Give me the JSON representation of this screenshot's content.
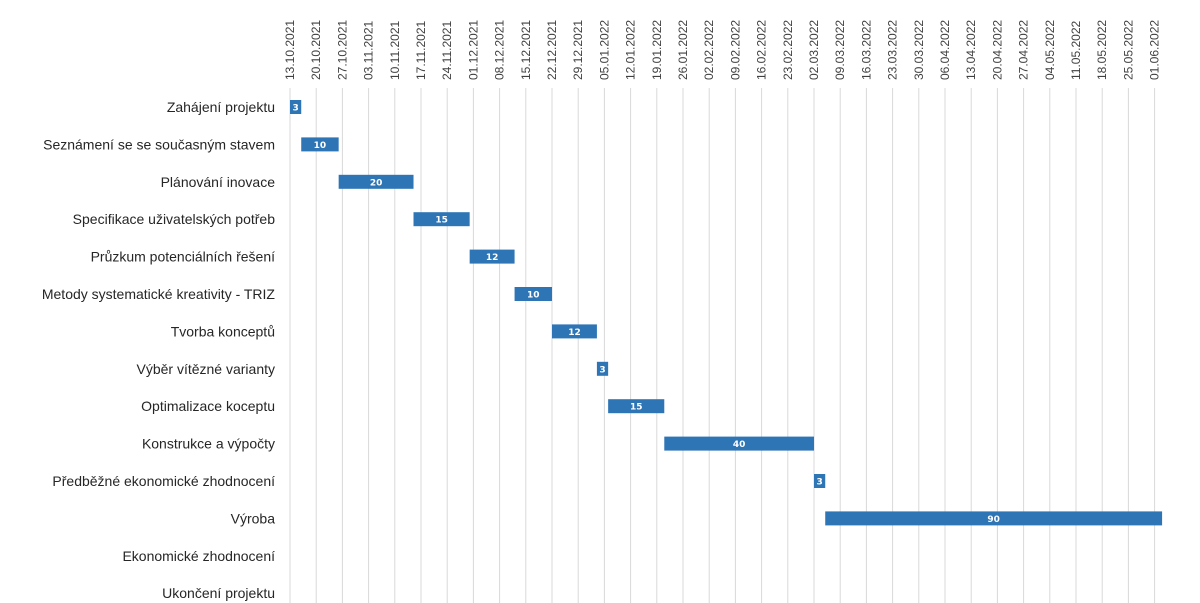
{
  "chart_data": {
    "type": "bar",
    "orientation": "horizontal",
    "subtype": "gantt",
    "title": "",
    "xlabel": "",
    "ylabel": "",
    "colors": {
      "bar": "#2e75b6",
      "grid": "#d9d9d9",
      "text": "#262626",
      "bar_label": "#ffffff"
    },
    "grid": true,
    "legend": "none",
    "xlim": [
      "2021-10-13",
      "2022-06-01"
    ],
    "x_ticks": [
      "13.10.2021",
      "20.10.2021",
      "27.10.2021",
      "03.11.2021",
      "10.11.2021",
      "17.11.2021",
      "24.11.2021",
      "01.12.2021",
      "08.12.2021",
      "15.12.2021",
      "22.12.2021",
      "29.12.2021",
      "05.01.2022",
      "12.01.2022",
      "19.01.2022",
      "26.01.2022",
      "02.02.2022",
      "09.02.2022",
      "16.02.2022",
      "23.02.2022",
      "02.03.2022",
      "09.03.2022",
      "16.03.2022",
      "23.03.2022",
      "30.03.2022",
      "06.04.2022",
      "13.04.2022",
      "20.04.2022",
      "27.04.2022",
      "04.05.2022",
      "11.05.2022",
      "18.05.2022",
      "25.05.2022",
      "01.06.2022"
    ],
    "tasks": [
      {
        "name": "Zahájení projektu",
        "start": "2021-10-13",
        "duration": 3
      },
      {
        "name": "Seznámení se se současným stavem",
        "start": "2021-10-16",
        "duration": 10
      },
      {
        "name": "Plánování inovace",
        "start": "2021-10-26",
        "duration": 20
      },
      {
        "name": "Specifikace uživatelských potřeb",
        "start": "2021-11-15",
        "duration": 15
      },
      {
        "name": "Průzkum potenciálních řešení",
        "start": "2021-11-30",
        "duration": 12
      },
      {
        "name": "Metody systematické kreativity - TRIZ",
        "start": "2021-12-12",
        "duration": 10
      },
      {
        "name": "Tvorba konceptů",
        "start": "2021-12-22",
        "duration": 12
      },
      {
        "name": "Výběr vítězné varianty",
        "start": "2022-01-03",
        "duration": 3
      },
      {
        "name": "Optimalizace koceptu",
        "start": "2022-01-06",
        "duration": 15
      },
      {
        "name": "Konstrukce a výpočty",
        "start": "2022-01-21",
        "duration": 40
      },
      {
        "name": "Předběžné ekonomické zhodnocení",
        "start": "2022-03-02",
        "duration": 3
      },
      {
        "name": "Výroba",
        "start": "2022-03-05",
        "duration": 90
      },
      {
        "name": "Ekonomické zhodnocení",
        "start": null,
        "duration": null
      },
      {
        "name": "Ukončení projektu",
        "start": null,
        "duration": null
      }
    ]
  }
}
